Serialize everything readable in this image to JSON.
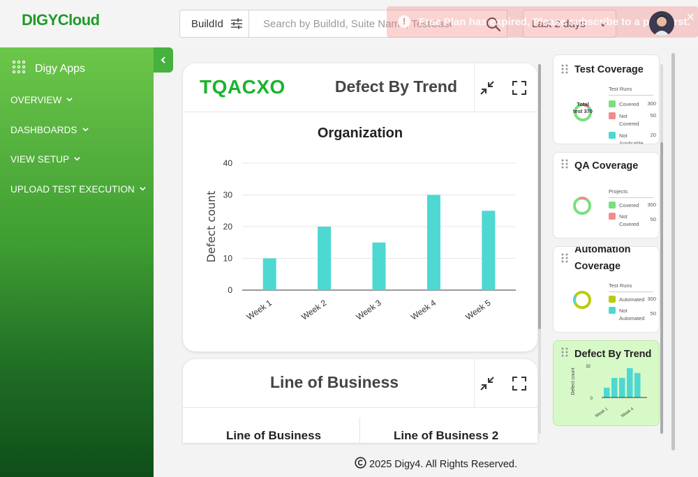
{
  "header": {
    "logo_part1": "DIGY",
    "logo_part2": "Cloud",
    "filter_label": "BuildId",
    "search_placeholder": "Search by BuildId, Suite Name, TestCase N",
    "date_range": "Last 2 days",
    "toast_message": "Free Plan has expired, Please subscribe to a plan first.",
    "toast_close": "✕"
  },
  "sidebar": {
    "apps_label": "Digy Apps",
    "items": [
      {
        "label": "OVERVIEW"
      },
      {
        "label": "DASHBOARDS"
      },
      {
        "label": "VIEW SETUP"
      },
      {
        "label": "UPLOAD TEST EXECUTION"
      }
    ]
  },
  "main": {
    "widget1": {
      "project_code": "TQACXO",
      "title": "Defect By Trend",
      "chart_title": "Organization"
    },
    "widget2": {
      "title": "Line of Business",
      "sub_title_left": "Line of Business",
      "sub_title_right": "Line of Business 2"
    }
  },
  "chart_data": {
    "type": "bar",
    "title": "Organization",
    "xlabel": "",
    "ylabel": "Defect count",
    "categories": [
      "Week 1",
      "Week 2",
      "Week 3",
      "Week 4",
      "Week 5"
    ],
    "values": [
      10,
      20,
      15,
      30,
      25
    ],
    "ylim": [
      0,
      40
    ],
    "yticks": [
      0,
      10,
      20,
      30,
      40
    ],
    "grid": true,
    "color": "#4dd8d2"
  },
  "cards": {
    "test_coverage": {
      "title": "Test Coverage",
      "legend_title": "Test Runs",
      "center_label": "Total test 370",
      "rows": [
        {
          "label": "Covered",
          "value": "300",
          "color": "#79e07c"
        },
        {
          "label": "Not Covered",
          "value": "50",
          "color": "#f58a8a"
        },
        {
          "label": "Not Applicable",
          "value": "20",
          "color": "#4dd8d2"
        }
      ]
    },
    "qa_coverage": {
      "title": "QA Coverage",
      "legend_title": "Projects",
      "rows": [
        {
          "label": "Covered",
          "value": "300",
          "color": "#79e07c"
        },
        {
          "label": "Not Covered",
          "value": "50",
          "color": "#f58a8a"
        }
      ]
    },
    "automation_coverage": {
      "title": "Automation Coverage",
      "legend_title": "Test Runs",
      "rows": [
        {
          "label": "Automated",
          "value": "300",
          "color": "#b7cd0c"
        },
        {
          "label": "Not Automated",
          "value": "50",
          "color": "#4dd8d2"
        }
      ]
    },
    "defect_trend": {
      "title": "Defect By Trend",
      "ylabel": "Defect count",
      "ytop": "32",
      "ybottom": "0",
      "xlabel_first": "Week 1",
      "xlabel_last": "Week 4",
      "values": [
        10,
        20,
        20,
        30,
        25
      ]
    }
  },
  "footer": {
    "text": "2025 Digy4. All Rights Reserved."
  }
}
